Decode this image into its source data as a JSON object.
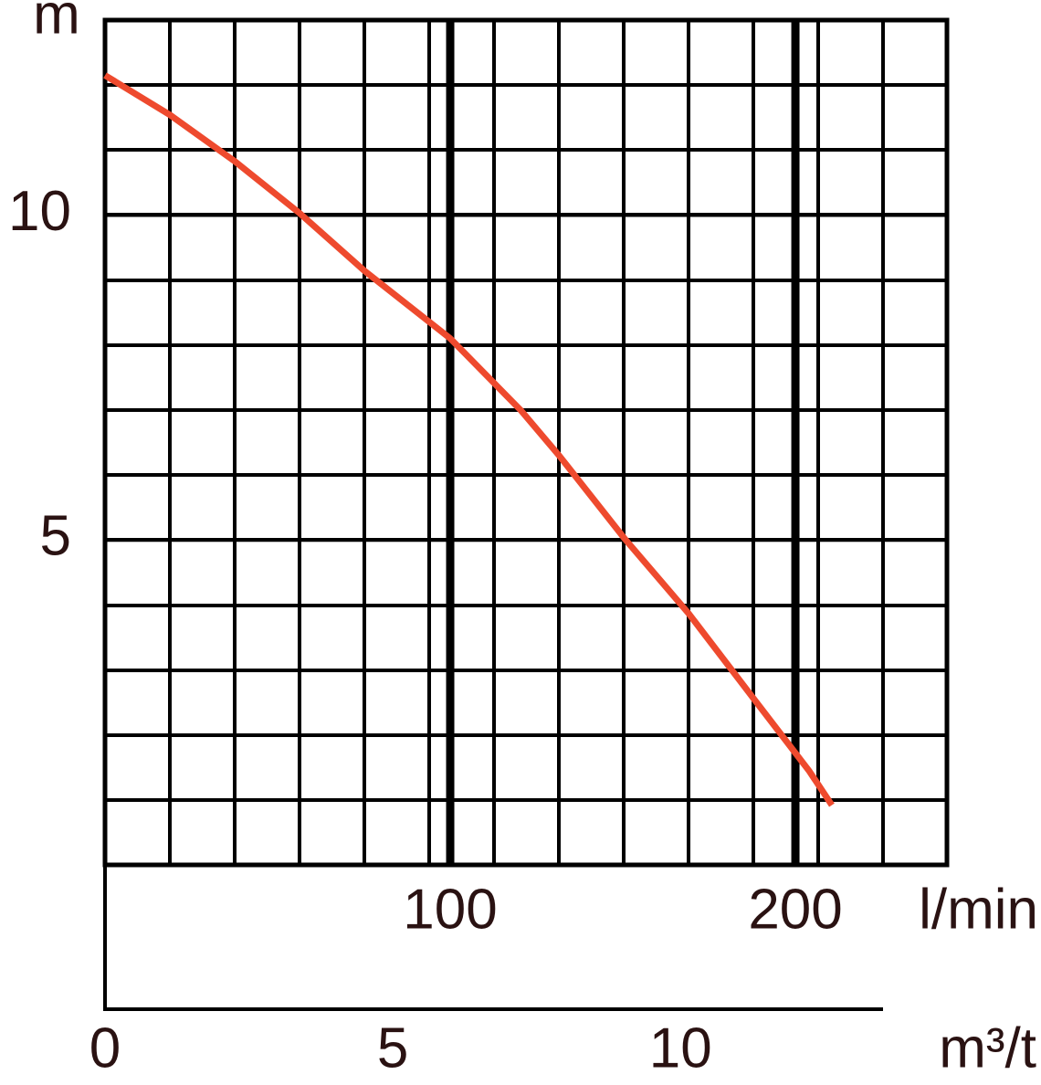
{
  "chart_data": {
    "type": "line",
    "y_label": "m",
    "x_label": "m³/t",
    "x2_label": "l/min",
    "x": [
      0,
      1.13,
      2.25,
      3.38,
      4.51,
      6.0,
      7.22,
      7.89,
      9.02,
      10.14,
      11.27,
      12.24,
      12.63
    ],
    "series": [
      {
        "color": "#ee4a2e",
        "values": [
          12.15,
          11.54,
          10.83,
          10.03,
          9.14,
          8.1,
          7.0,
          6.3,
          5.03,
          3.87,
          2.56,
          1.44,
          0.92
        ]
      }
    ],
    "xlim": [
      0,
      14.63
    ],
    "xticks": [
      0,
      5,
      10
    ],
    "x2lim": [
      0,
      243.9
    ],
    "x2ticks": [
      100,
      200
    ],
    "ylim": [
      0,
      13
    ],
    "yticks": [
      5,
      10
    ]
  }
}
